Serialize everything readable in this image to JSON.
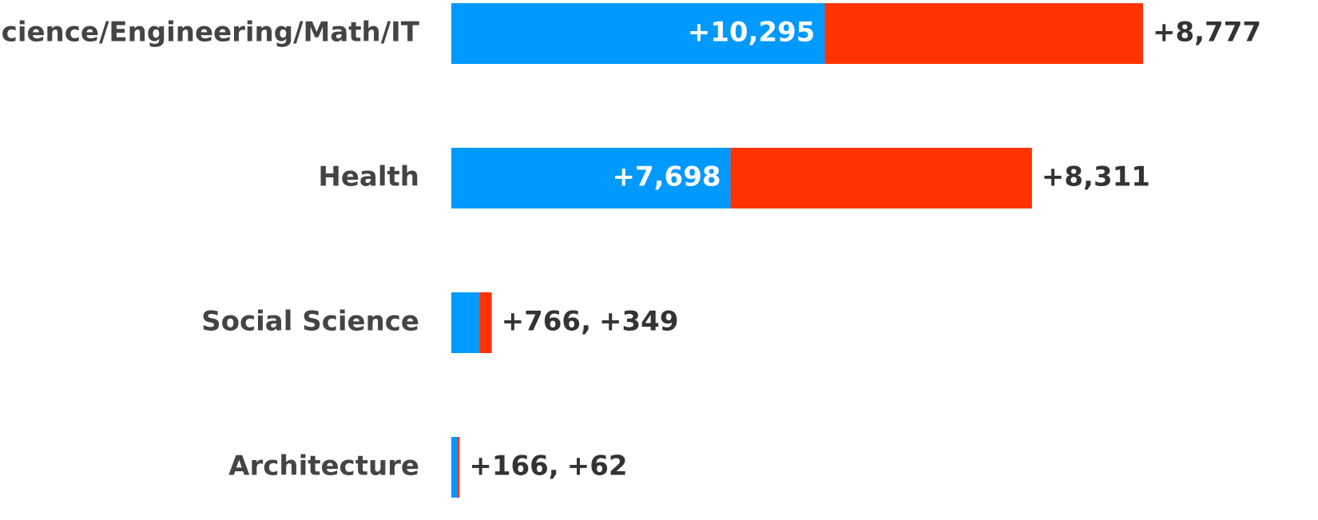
{
  "chart_data": {
    "type": "stacked-bar-horizontal",
    "categories": [
      "Science/Engineering/Math/IT",
      "Health",
      "Social Science",
      "Architecture"
    ],
    "series": [
      {
        "color": "#0099ff",
        "values": [
          10295,
          7698,
          766,
          166
        ],
        "value_labels": [
          "+10,295",
          "+7,698",
          "+766,",
          "+166,"
        ]
      },
      {
        "color": "#ff3300",
        "values": [
          8777,
          8311,
          349,
          62
        ],
        "value_labels": [
          "+8,777",
          "+8,311",
          "+349",
          "+62"
        ]
      }
    ]
  }
}
